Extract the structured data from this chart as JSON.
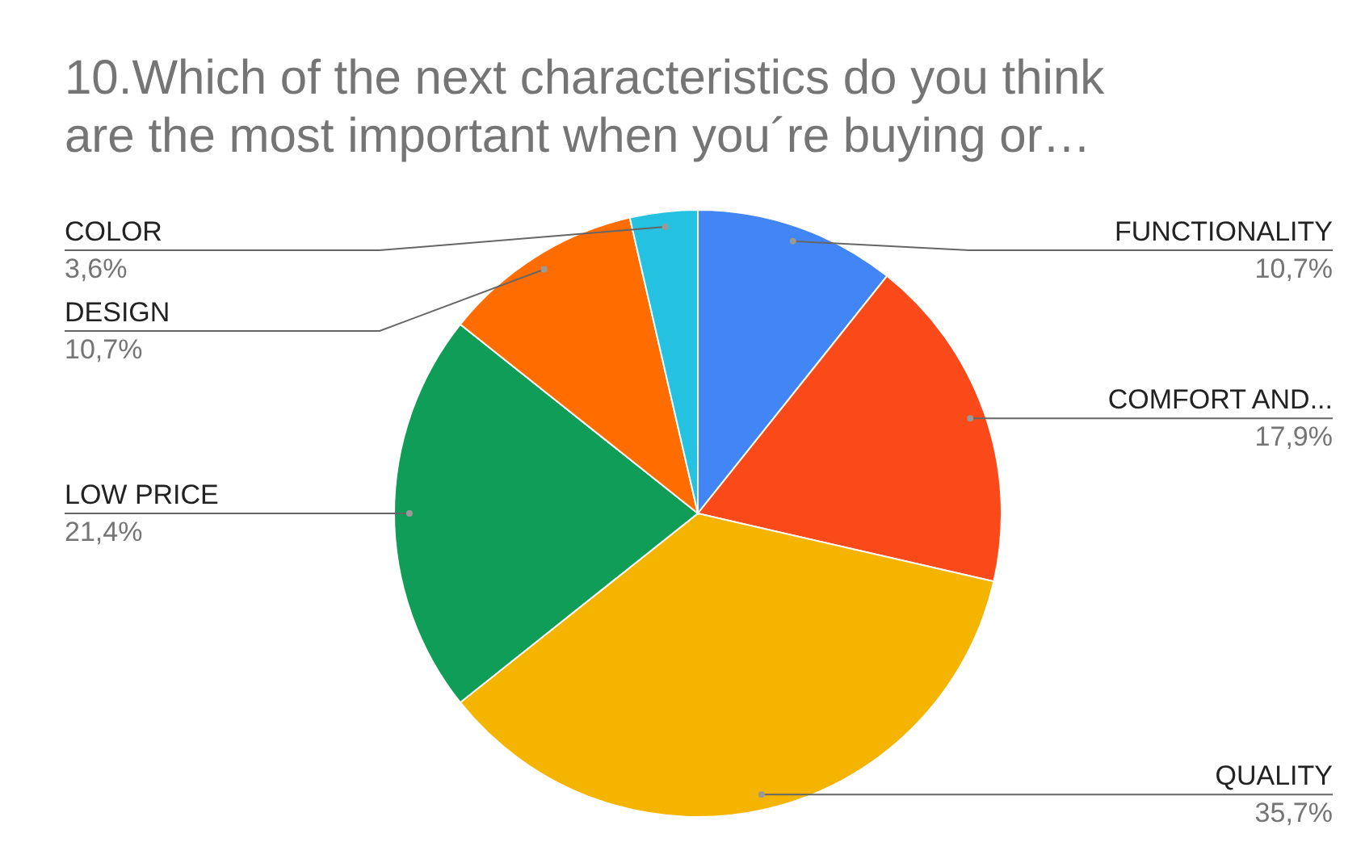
{
  "chart_data": {
    "type": "pie",
    "title": "10.Which of the next characteristics do you think are the most important when you´re buying or…",
    "categories": [
      "FUNCTIONALITY",
      "COMFORT AND...",
      "QUALITY",
      "LOW PRICE",
      "DESIGN",
      "COLOR"
    ],
    "values": [
      10.7,
      17.9,
      35.7,
      21.4,
      10.7,
      3.6
    ],
    "value_labels": [
      "10,7%",
      "17,9%",
      "35,7%",
      "21,4%",
      "10,7%",
      "3,6%"
    ],
    "colors": [
      "#4285f4",
      "#fb4a1a",
      "#f4b400",
      "#0f9d58",
      "#ff6d00",
      "#24c1e0"
    ]
  }
}
